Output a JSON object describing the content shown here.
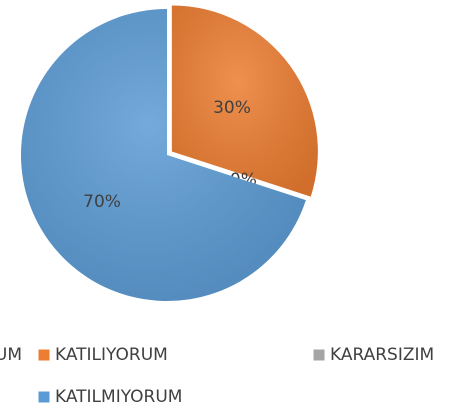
{
  "chart_data": {
    "type": "pie",
    "categories": [
      "UM",
      "KATILIYORUM",
      "KARARSIZIM",
      "KATILMIYORUM"
    ],
    "values": [
      0,
      30,
      0,
      70
    ],
    "value_labels": [
      null,
      "30%",
      "0%",
      "70%"
    ],
    "colors": [
      null,
      "#ed7d31",
      "#a5a5a5",
      "#5b9bd5"
    ]
  }
}
